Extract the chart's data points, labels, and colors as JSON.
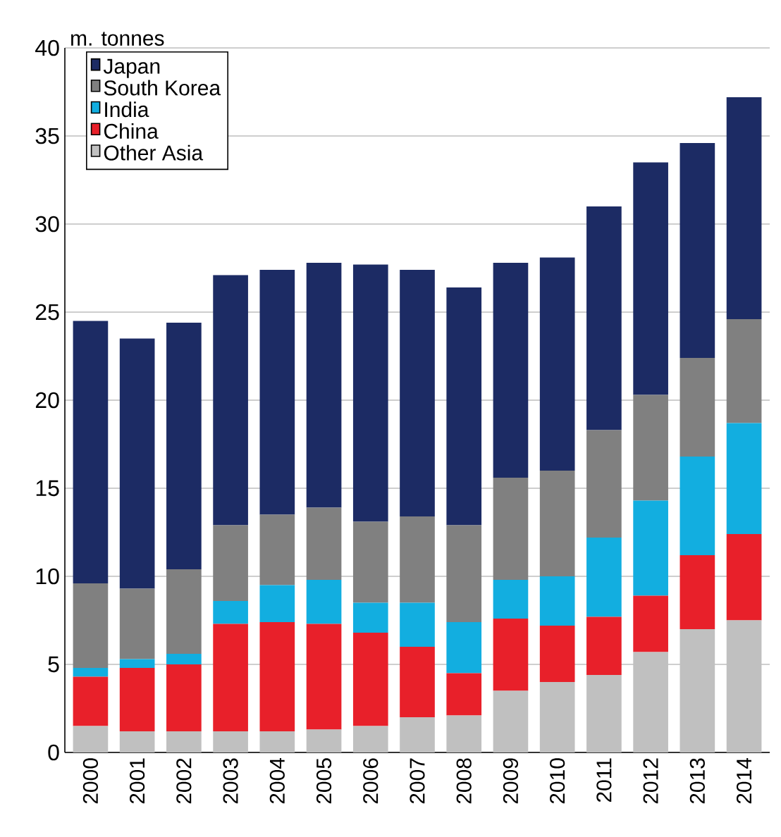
{
  "chart_data": {
    "type": "bar",
    "stacked": true,
    "ylabel": "m. tonnes",
    "categories": [
      "2000",
      "2001",
      "2002",
      "2003",
      "2004",
      "2005",
      "2006",
      "2007",
      "2008",
      "2009",
      "2010",
      "2011",
      "2012",
      "2013",
      "2014"
    ],
    "series": [
      {
        "name": "Other Asia",
        "color": "#c0c0c0",
        "values": [
          1.5,
          1.2,
          1.2,
          1.2,
          1.2,
          1.3,
          1.5,
          2.0,
          2.1,
          3.5,
          4.0,
          4.4,
          5.7,
          7.0,
          7.5
        ]
      },
      {
        "name": "China",
        "color": "#e8202a",
        "values": [
          2.8,
          3.6,
          3.8,
          6.1,
          6.2,
          6.0,
          5.3,
          4.0,
          2.4,
          4.1,
          3.2,
          3.3,
          3.2,
          4.2,
          4.9
        ]
      },
      {
        "name": "India",
        "color": "#12aee0",
        "values": [
          0.5,
          0.5,
          0.6,
          1.3,
          2.1,
          2.5,
          1.7,
          2.5,
          2.9,
          2.2,
          2.8,
          4.5,
          5.4,
          5.6,
          6.3
        ]
      },
      {
        "name": "South Korea",
        "color": "#808080",
        "values": [
          4.8,
          4.0,
          4.8,
          4.3,
          4.0,
          4.1,
          4.6,
          4.9,
          5.5,
          5.8,
          6.0,
          6.1,
          6.0,
          5.6,
          5.9
        ]
      },
      {
        "name": "Japan",
        "color": "#1c2b64",
        "values": [
          14.9,
          14.2,
          14.0,
          14.2,
          13.9,
          13.9,
          14.6,
          14.0,
          13.5,
          12.2,
          12.1,
          12.7,
          13.2,
          12.2,
          12.6
        ]
      }
    ],
    "ylim": [
      0,
      40
    ],
    "yticks": [
      0,
      5,
      10,
      15,
      20,
      25,
      30,
      35,
      40
    ],
    "grid": "y",
    "legend": "top left"
  }
}
